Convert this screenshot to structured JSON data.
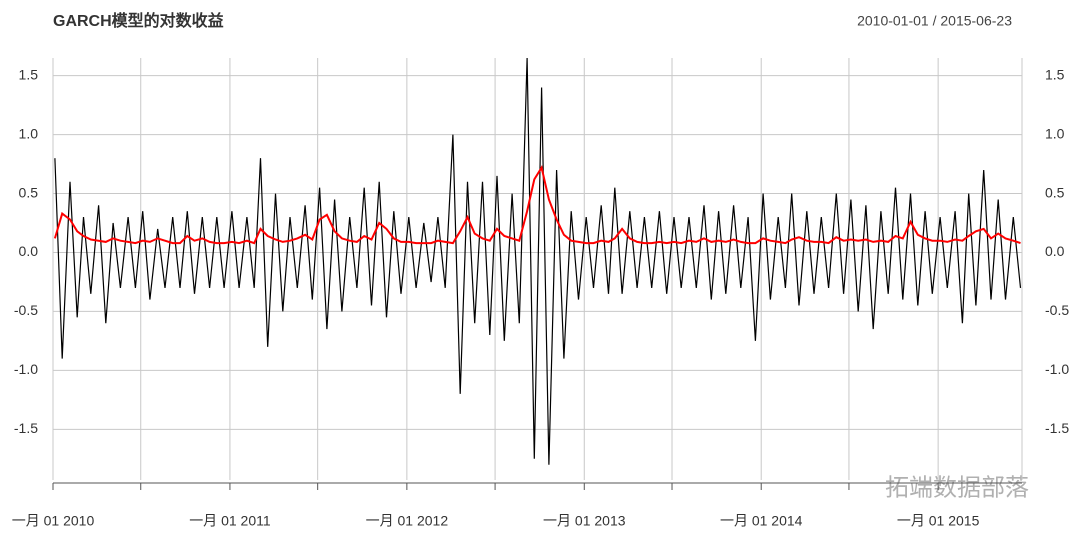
{
  "chart_data": {
    "type": "line",
    "title": "GARCH模型的对数收益",
    "subtitle": "2010-01-01 / 2015-06-23",
    "watermark": "拓端数据部落",
    "x": [
      "2010-01-05",
      "2010-01-20",
      "2010-02-05",
      "2010-02-20",
      "2010-03-05",
      "2010-03-20",
      "2010-04-05",
      "2010-04-20",
      "2010-05-05",
      "2010-05-20",
      "2010-06-05",
      "2010-06-20",
      "2010-07-05",
      "2010-07-20",
      "2010-08-05",
      "2010-08-20",
      "2010-09-05",
      "2010-09-20",
      "2010-10-05",
      "2010-10-20",
      "2010-11-05",
      "2010-11-20",
      "2010-12-05",
      "2010-12-20",
      "2011-01-05",
      "2011-01-20",
      "2011-02-05",
      "2011-02-20",
      "2011-03-05",
      "2011-03-20",
      "2011-04-05",
      "2011-04-20",
      "2011-05-05",
      "2011-05-20",
      "2011-06-05",
      "2011-06-20",
      "2011-07-05",
      "2011-07-20",
      "2011-08-05",
      "2011-08-20",
      "2011-09-05",
      "2011-09-20",
      "2011-10-05",
      "2011-10-20",
      "2011-11-05",
      "2011-11-20",
      "2011-12-05",
      "2011-12-20",
      "2012-01-05",
      "2012-01-20",
      "2012-02-05",
      "2012-02-20",
      "2012-03-05",
      "2012-03-20",
      "2012-04-05",
      "2012-04-20",
      "2012-05-05",
      "2012-05-20",
      "2012-06-05",
      "2012-06-20",
      "2012-07-05",
      "2012-07-20",
      "2012-08-05",
      "2012-08-20",
      "2012-09-05",
      "2012-09-20",
      "2012-10-05",
      "2012-10-20",
      "2012-11-05",
      "2012-11-20",
      "2012-12-05",
      "2012-12-20",
      "2013-01-05",
      "2013-01-20",
      "2013-02-05",
      "2013-02-20",
      "2013-03-05",
      "2013-03-20",
      "2013-04-05",
      "2013-04-20",
      "2013-05-05",
      "2013-05-20",
      "2013-06-05",
      "2013-06-20",
      "2013-07-05",
      "2013-07-20",
      "2013-08-05",
      "2013-08-20",
      "2013-09-05",
      "2013-09-20",
      "2013-10-05",
      "2013-10-20",
      "2013-11-05",
      "2013-11-20",
      "2013-12-05",
      "2013-12-20",
      "2014-01-05",
      "2014-01-20",
      "2014-02-05",
      "2014-02-20",
      "2014-03-05",
      "2014-03-20",
      "2014-04-05",
      "2014-04-20",
      "2014-05-05",
      "2014-05-20",
      "2014-06-05",
      "2014-06-20",
      "2014-07-05",
      "2014-07-20",
      "2014-08-05",
      "2014-08-20",
      "2014-09-05",
      "2014-09-20",
      "2014-10-05",
      "2014-10-20",
      "2014-11-05",
      "2014-11-20",
      "2014-12-05",
      "2014-12-20",
      "2015-01-05",
      "2015-01-20",
      "2015-02-05",
      "2015-02-20",
      "2015-03-05",
      "2015-03-20",
      "2015-04-05",
      "2015-04-20",
      "2015-05-05",
      "2015-05-20",
      "2015-06-05",
      "2015-06-20"
    ],
    "series": [
      {
        "color": "#000000",
        "values": [
          0.8,
          -0.9,
          0.6,
          -0.55,
          0.3,
          -0.35,
          0.4,
          -0.6,
          0.25,
          -0.3,
          0.3,
          -0.3,
          0.35,
          -0.4,
          0.2,
          -0.3,
          0.3,
          -0.3,
          0.35,
          -0.35,
          0.3,
          -0.3,
          0.3,
          -0.3,
          0.35,
          -0.3,
          0.3,
          -0.3,
          0.8,
          -0.8,
          0.5,
          -0.5,
          0.3,
          -0.3,
          0.4,
          -0.4,
          0.55,
          -0.65,
          0.45,
          -0.5,
          0.3,
          -0.3,
          0.55,
          -0.45,
          0.6,
          -0.55,
          0.35,
          -0.35,
          0.3,
          -0.3,
          0.25,
          -0.25,
          0.3,
          -0.3,
          1.0,
          -1.2,
          0.6,
          -0.6,
          0.6,
          -0.7,
          0.65,
          -0.75,
          0.5,
          -0.6,
          1.65,
          -1.75,
          1.4,
          -1.8,
          0.7,
          -0.9,
          0.35,
          -0.4,
          0.3,
          -0.3,
          0.4,
          -0.35,
          0.55,
          -0.35,
          0.35,
          -0.3,
          0.3,
          -0.3,
          0.35,
          -0.35,
          0.3,
          -0.3,
          0.3,
          -0.3,
          0.4,
          -0.4,
          0.35,
          -0.35,
          0.4,
          -0.3,
          0.3,
          -0.75,
          0.5,
          -0.4,
          0.3,
          -0.3,
          0.5,
          -0.45,
          0.35,
          -0.35,
          0.3,
          -0.3,
          0.5,
          -0.35,
          0.45,
          -0.5,
          0.4,
          -0.65,
          0.35,
          -0.35,
          0.55,
          -0.4,
          0.5,
          -0.45,
          0.35,
          -0.35,
          0.3,
          -0.3,
          0.35,
          -0.6,
          0.5,
          -0.45,
          0.7,
          -0.4,
          0.45,
          -0.4,
          0.3,
          -0.3
        ]
      },
      {
        "color": "#ff0000",
        "values": [
          0.12,
          0.33,
          0.28,
          0.18,
          0.14,
          0.11,
          0.1,
          0.09,
          0.12,
          0.1,
          0.09,
          0.08,
          0.1,
          0.09,
          0.12,
          0.1,
          0.08,
          0.08,
          0.14,
          0.1,
          0.12,
          0.09,
          0.08,
          0.08,
          0.09,
          0.08,
          0.1,
          0.08,
          0.2,
          0.14,
          0.11,
          0.09,
          0.1,
          0.12,
          0.15,
          0.11,
          0.28,
          0.32,
          0.18,
          0.12,
          0.1,
          0.09,
          0.14,
          0.11,
          0.25,
          0.2,
          0.12,
          0.09,
          0.09,
          0.08,
          0.08,
          0.08,
          0.1,
          0.09,
          0.08,
          0.18,
          0.3,
          0.16,
          0.12,
          0.1,
          0.2,
          0.14,
          0.12,
          0.1,
          0.35,
          0.62,
          0.72,
          0.45,
          0.28,
          0.15,
          0.1,
          0.09,
          0.08,
          0.08,
          0.1,
          0.09,
          0.12,
          0.2,
          0.12,
          0.09,
          0.08,
          0.08,
          0.09,
          0.08,
          0.09,
          0.08,
          0.1,
          0.09,
          0.12,
          0.09,
          0.1,
          0.09,
          0.11,
          0.09,
          0.08,
          0.08,
          0.12,
          0.1,
          0.09,
          0.08,
          0.11,
          0.13,
          0.1,
          0.09,
          0.09,
          0.08,
          0.13,
          0.1,
          0.11,
          0.1,
          0.11,
          0.09,
          0.1,
          0.09,
          0.14,
          0.12,
          0.26,
          0.15,
          0.12,
          0.1,
          0.1,
          0.09,
          0.11,
          0.1,
          0.14,
          0.18,
          0.2,
          0.12,
          0.16,
          0.12,
          0.1,
          0.08
        ]
      }
    ],
    "xlim": [
      "2010-01-01",
      "2015-06-23"
    ],
    "xticks": [
      {
        "value": "2010-01-01",
        "label": "一月 01 2010"
      },
      {
        "value": "2011-01-01",
        "label": "一月 01 2011"
      },
      {
        "value": "2012-01-01",
        "label": "一月 01 2012"
      },
      {
        "value": "2013-01-01",
        "label": "一月 01 2013"
      },
      {
        "value": "2014-01-01",
        "label": "一月 01 2014"
      },
      {
        "value": "2015-01-01",
        "label": "一月 01 2015"
      }
    ],
    "xminorticks": [
      "2010-07-01",
      "2011-07-01",
      "2012-07-01",
      "2013-07-01",
      "2014-07-01"
    ],
    "ylim": [
      -1.93,
      1.65
    ],
    "yticks": [
      -1.5,
      {
        "value": -1,
        "label": "-1.0"
      },
      -0.5,
      {
        "value": 0,
        "label": "0.0"
      },
      0.5,
      {
        "value": 1,
        "label": "1.0"
      },
      1.5
    ],
    "grid": true
  }
}
